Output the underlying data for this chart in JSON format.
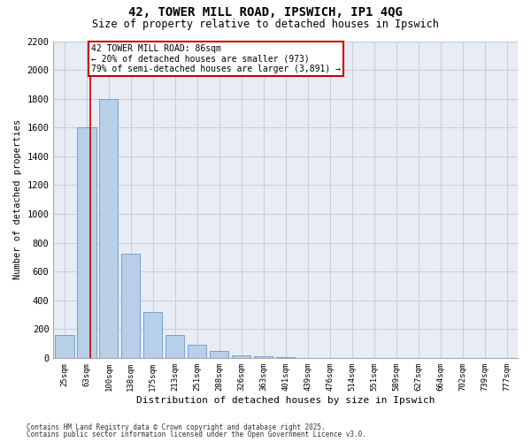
{
  "title": "42, TOWER MILL ROAD, IPSWICH, IP1 4QG",
  "subtitle": "Size of property relative to detached houses in Ipswich",
  "xlabel": "Distribution of detached houses by size in Ipswich",
  "ylabel": "Number of detached properties",
  "categories": [
    "25sqm",
    "63sqm",
    "100sqm",
    "138sqm",
    "175sqm",
    "213sqm",
    "251sqm",
    "288sqm",
    "326sqm",
    "363sqm",
    "401sqm",
    "439sqm",
    "476sqm",
    "514sqm",
    "551sqm",
    "589sqm",
    "627sqm",
    "664sqm",
    "702sqm",
    "739sqm",
    "777sqm"
  ],
  "bar_values": [
    160,
    1600,
    1800,
    725,
    320,
    160,
    90,
    50,
    20,
    10,
    5,
    2,
    2,
    1,
    1,
    0,
    0,
    0,
    0,
    0,
    0
  ],
  "bar_color": "#b8cfe8",
  "bar_edge_color": "#6699cc",
  "grid_color": "#c8cfe0",
  "background_color": "#e8ecf5",
  "annotation_line1": "42 TOWER MILL ROAD: 86sqm",
  "annotation_line2": "← 20% of detached houses are smaller (973)",
  "annotation_line3": "79% of semi-detached houses are larger (3,891) →",
  "annotation_box_color": "#cc0000",
  "vline_color": "#cc0000",
  "vline_x": 1.15,
  "ylim": [
    0,
    2200
  ],
  "yticks": [
    0,
    200,
    400,
    600,
    800,
    1000,
    1200,
    1400,
    1600,
    1800,
    2000,
    2200
  ],
  "footnote1": "Contains HM Land Registry data © Crown copyright and database right 2025.",
  "footnote2": "Contains public sector information licensed under the Open Government Licence v3.0."
}
